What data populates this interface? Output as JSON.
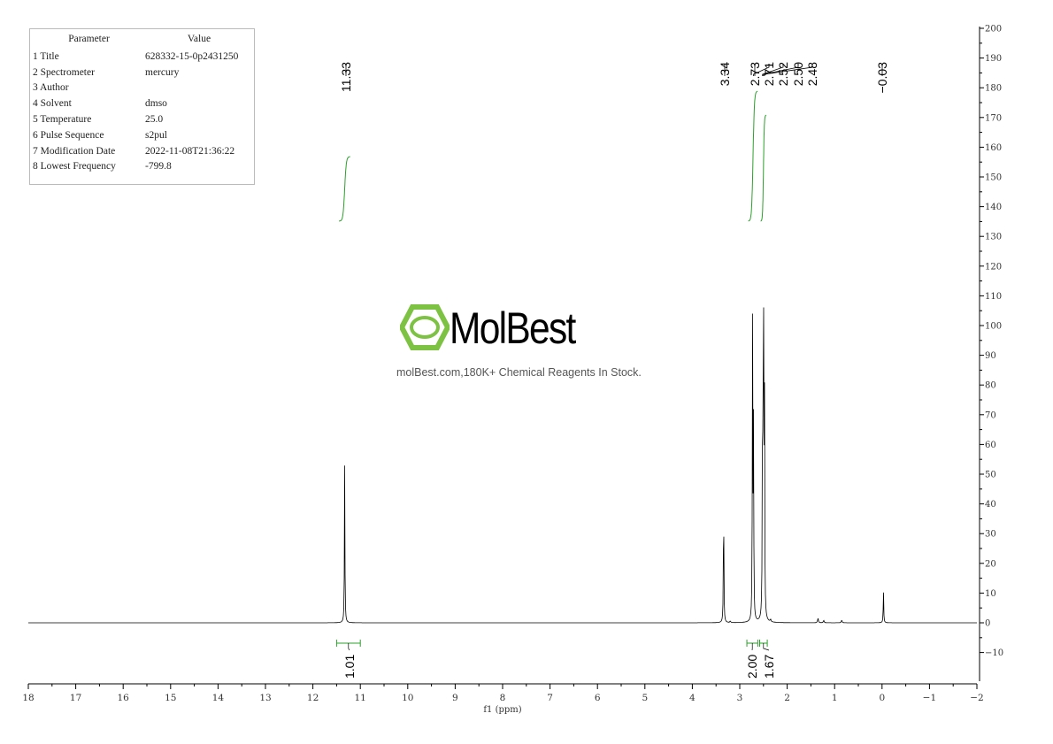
{
  "params": {
    "header": [
      "Parameter",
      "Value"
    ],
    "rows": [
      [
        "1 Title",
        "628332-15-0p2431250"
      ],
      [
        "2 Spectrometer",
        "mercury"
      ],
      [
        "3 Author",
        ""
      ],
      [
        "4 Solvent",
        "dmso"
      ],
      [
        "5 Temperature",
        "25.0"
      ],
      [
        "6 Pulse Sequence",
        "s2pul"
      ],
      [
        "7 Modification Date",
        "2022-11-08T21:36:22"
      ],
      [
        "8 Lowest Frequency",
        "-799.8"
      ]
    ]
  },
  "watermark": {
    "name": "MolBest",
    "tagline": "molBest.com,180K+ Chemical Reagents In Stock.",
    "color": "#7dc242"
  },
  "chart_data": {
    "type": "line",
    "xlabel": "f1 (ppm)",
    "xlim": [
      18,
      -2
    ],
    "ylim": [
      -20,
      200
    ],
    "xticks": [
      18,
      17,
      16,
      15,
      14,
      13,
      12,
      11,
      10,
      9,
      8,
      7,
      6,
      5,
      4,
      3,
      2,
      1,
      0,
      -1,
      -2
    ],
    "yticks": [
      200,
      190,
      180,
      170,
      160,
      150,
      140,
      130,
      120,
      110,
      100,
      90,
      80,
      70,
      60,
      50,
      40,
      30,
      20,
      10,
      0,
      -10
    ],
    "peaks": [
      {
        "ppm": 11.33,
        "height": 53
      },
      {
        "ppm": 3.34,
        "height": 43
      },
      {
        "ppm": 2.73,
        "height": 99
      },
      {
        "ppm": 2.71,
        "height": 64
      },
      {
        "ppm": 2.52,
        "height": 76
      },
      {
        "ppm": 2.5,
        "height": 127
      },
      {
        "ppm": 2.48,
        "height": 82
      },
      {
        "ppm": -0.03,
        "height": 11
      }
    ],
    "peak_labels": [
      "11.33",
      "3.34",
      "2.73",
      "2.71",
      "2.52",
      "2.50",
      "2.48",
      "-0.03"
    ],
    "integrals": [
      {
        "from": 11.5,
        "to": 11.0,
        "value": "1.01"
      },
      {
        "from": 2.85,
        "to": 2.62,
        "value": "2.00"
      },
      {
        "from": 2.58,
        "to": 2.42,
        "value": "1.67"
      }
    ],
    "colors": {
      "spectrum": "#000000",
      "integral": "#2ca02c"
    },
    "grid": false
  }
}
